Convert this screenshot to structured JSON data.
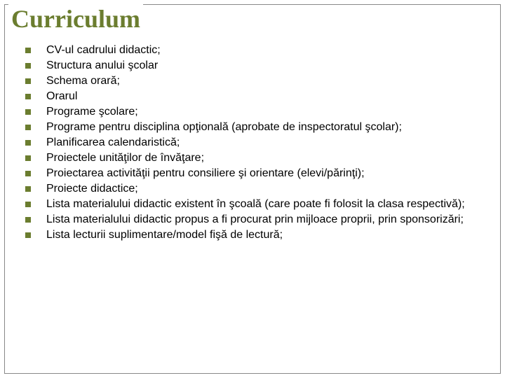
{
  "title": "Curriculum",
  "title_color": "#6b7d2f",
  "bullet_color": "#6b7d2f",
  "text_color": "#000000",
  "background_color": "#ffffff",
  "border_color": "#888888",
  "title_fontsize": 36,
  "text_fontsize": 16,
  "items": [
    "CV-ul cadrului didactic;",
    "Structura anului şcolar",
    "Schema orară;",
    "Orarul",
    "Programe şcolare;",
    "Programe pentru disciplina opţională (aprobate de inspectoratul şcolar);",
    "Planificarea calendaristică;",
    "Proiectele unităţilor de învăţare;",
    "Proiectarea activităţii pentru consiliere şi orientare (elevi/părinţi);",
    "Proiecte didactice;",
    "Lista materialului didactic existent în şcoală (care poate fi folosit la clasa respectivă);",
    "Lista materialului didactic propus a fi procurat prin mijloace proprii, prin sponsorizări;",
    "Lista lecturii suplimentare/model fişă de lectură;"
  ]
}
